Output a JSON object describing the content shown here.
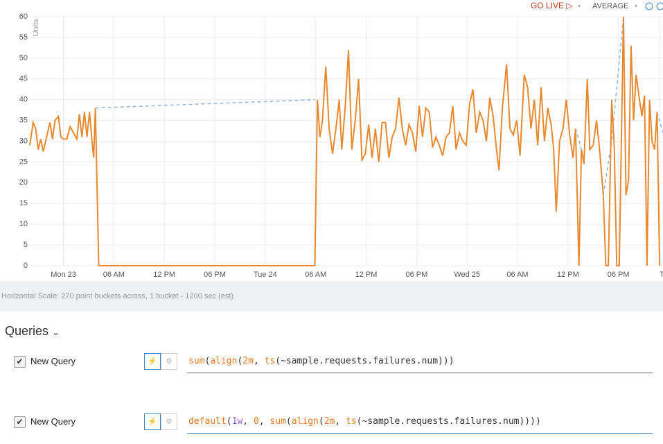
{
  "toolbar": {
    "live": "GO LIVE ▷",
    "mode": "AVERAGE"
  },
  "chart_data": {
    "type": "line",
    "ylabel": "Units",
    "grid": true,
    "xlim": [
      -4,
      71.3
    ],
    "ylim": [
      0,
      60
    ],
    "xticks": [
      {
        "value": 0,
        "label": "Mon 23"
      },
      {
        "value": 6,
        "label": "06 AM"
      },
      {
        "value": 12,
        "label": "12 PM"
      },
      {
        "value": 18,
        "label": "06 PM"
      },
      {
        "value": 24,
        "label": "Tue 24"
      },
      {
        "value": 30,
        "label": "06 AM"
      },
      {
        "value": 36,
        "label": "12 PM"
      },
      {
        "value": 42,
        "label": "06 PM"
      },
      {
        "value": 48,
        "label": "Wed 25"
      },
      {
        "value": 54,
        "label": "06 AM"
      },
      {
        "value": 60,
        "label": "12 PM"
      },
      {
        "value": 66,
        "label": "06 PM"
      },
      {
        "value": 70.9,
        "label": "T"
      }
    ],
    "yticks": [
      0,
      5,
      10,
      15,
      20,
      25,
      30,
      35,
      40,
      45,
      50,
      55,
      60
    ],
    "series": [
      {
        "color": "#8fb4d9",
        "dashed": true,
        "x": [
          3.8,
          29.9,
          45,
          60.9,
          61.6,
          63,
          64.2,
          65.2,
          66.6,
          68,
          70.6,
          71.3
        ],
        "values": [
          38,
          40,
          null,
          33,
          28,
          null,
          17,
          30,
          60,
          null,
          37,
          32
        ]
      },
      {
        "color": "#e8892f",
        "dashed": false,
        "x": [
          -4,
          -3.6,
          -3.3,
          -3,
          -2.7,
          -2.4,
          -2,
          -1.6,
          -1.3,
          -1,
          -0.6,
          -0.3,
          0,
          0.4,
          0.8,
          1.2,
          1.6,
          1.9,
          2.2,
          2.5,
          2.8,
          3.1,
          3.4,
          3.6,
          3.8,
          4.2,
          29.9,
          30.2,
          30.5,
          30.8,
          31.2,
          31.6,
          32,
          32.4,
          32.8,
          33.1,
          33.5,
          33.9,
          34.3,
          34.7,
          35.1,
          35.5,
          35.9,
          36.3,
          36.7,
          37.1,
          37.5,
          37.9,
          38.3,
          38.7,
          39.1,
          39.5,
          39.9,
          40.3,
          40.7,
          41.1,
          41.5,
          41.9,
          42.3,
          42.7,
          43.1,
          43.5,
          43.9,
          44.3,
          44.7,
          45.1,
          45.5,
          45.9,
          46.3,
          46.7,
          47.1,
          47.5,
          47.9,
          48.3,
          48.7,
          49.1,
          49.5,
          49.9,
          50.3,
          50.7,
          51.1,
          51.5,
          51.8,
          52.2,
          52.7,
          53.1,
          53.5,
          53.9,
          54.3,
          54.8,
          55.2,
          55.6,
          56,
          56.4,
          56.8,
          57.2,
          57.6,
          58,
          58.3,
          58.6,
          59,
          59.4,
          59.8,
          60.2,
          60.6,
          60.9,
          61.3,
          61.6,
          61.9,
          62.3,
          62.6,
          63,
          63.4,
          63.8,
          64.2,
          64.5,
          64.8,
          65.2,
          65.5,
          65.8,
          66.1,
          66.6,
          66.9,
          67.2,
          67.5,
          67.8,
          68.1,
          68.5,
          68.8,
          69.1,
          69.4,
          69.7,
          70,
          70.3,
          70.6,
          70.9
        ],
        "values": [
          29,
          34.5,
          33,
          28,
          30.5,
          27.5,
          31,
          34.5,
          30.5,
          35,
          36,
          31,
          30.5,
          30.5,
          33.5,
          32,
          30.5,
          36.5,
          31,
          37,
          31,
          37,
          30,
          26,
          38,
          0,
          0,
          40,
          31,
          35,
          48,
          33,
          27,
          33,
          40,
          28,
          38,
          52,
          28,
          35,
          45,
          25.5,
          27,
          34,
          26,
          33,
          25,
          34.5,
          34.5,
          26,
          31,
          33,
          40.5,
          33,
          29,
          34,
          32,
          27.5,
          38.5,
          31,
          38,
          37,
          28.5,
          31,
          29,
          26.5,
          31,
          32,
          38.5,
          28,
          32,
          30,
          29,
          39,
          42.5,
          32,
          37,
          35,
          30,
          40.5,
          36,
          28,
          23,
          38,
          48.5,
          33,
          31.5,
          35,
          26.5,
          46,
          43,
          33,
          40,
          29,
          43,
          30,
          38,
          34,
          28,
          13,
          30,
          33,
          40,
          31.5,
          26,
          33,
          0,
          28,
          24.5,
          45,
          28,
          29,
          35,
          27,
          17,
          0,
          0,
          40,
          29,
          0,
          0,
          60,
          17,
          20.5,
          53,
          35,
          46,
          40,
          36,
          41,
          0,
          40,
          30,
          28,
          37,
          0
        ]
      }
    ]
  },
  "scale_note": "Horizontal Scale: 270 point buckets across, 1 bucket - 1200 sec (est)",
  "queries": {
    "title": "Queries",
    "items": [
      {
        "name": "New Query",
        "tokens": [
          "sum",
          "(",
          "align",
          "(",
          "2m",
          ", ",
          "ts",
          "(~sample.requests.failures.num)))"
        ]
      },
      {
        "name": "New Query",
        "tokens": [
          "default",
          "(",
          "1w",
          ", ",
          "0",
          ", ",
          "sum",
          "(",
          "align",
          "(",
          "2m",
          ", ",
          "ts",
          "(~sample.requests.failures.num))))"
        ]
      }
    ]
  }
}
